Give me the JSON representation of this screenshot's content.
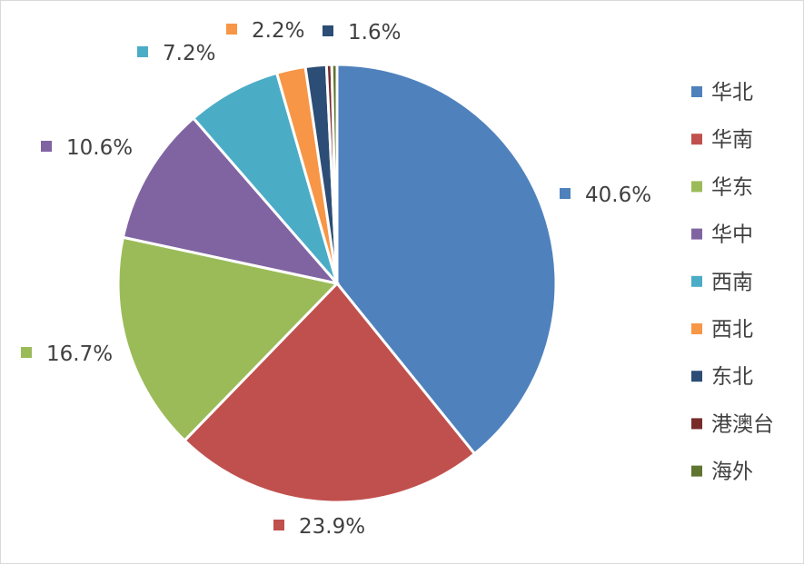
{
  "chart_data": {
    "type": "pie",
    "title": "",
    "categories": [
      "华北",
      "华南",
      "华东",
      "华中",
      "西南",
      "西北",
      "东北",
      "港澳台",
      "海外"
    ],
    "values": [
      40.6,
      23.9,
      16.7,
      10.6,
      7.2,
      2.2,
      1.6,
      0.4,
      0.4
    ],
    "data_labels": [
      "40.6%",
      "23.9%",
      "16.7%",
      "10.6%",
      "7.2%",
      "2.2%",
      "1.6%",
      "",
      ""
    ],
    "colors": [
      "#4f81bd",
      "#c0504d",
      "#9bbb59",
      "#8064a2",
      "#4bacc6",
      "#f79646",
      "#2c4d75",
      "#772c2a",
      "#5f7530"
    ],
    "legend": {
      "position": "right"
    },
    "start_angle_deg": 0,
    "direction": "clockwise"
  }
}
